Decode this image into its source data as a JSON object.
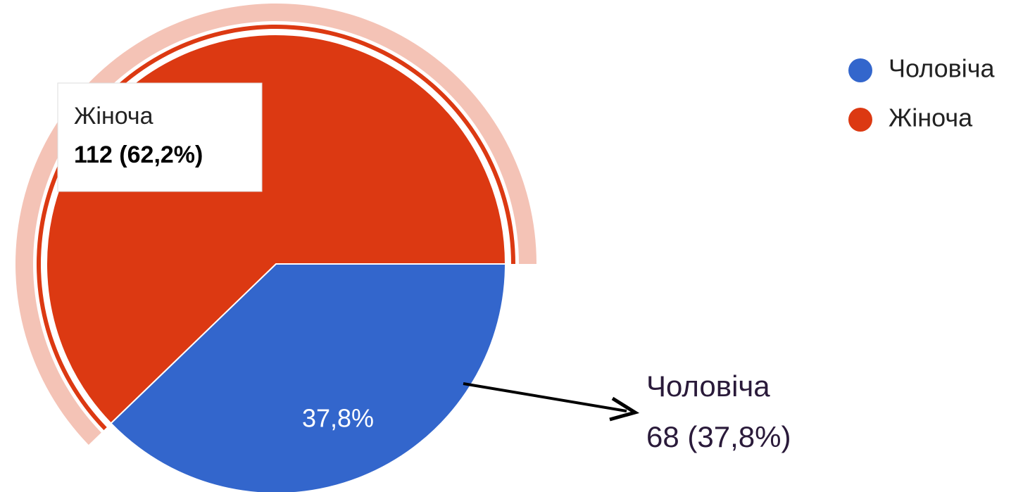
{
  "chart_data": {
    "type": "pie",
    "categories": [
      "Чоловіча",
      "Жіноча"
    ],
    "values": [
      68,
      112
    ],
    "value_labels": [
      "68 (37,8%)",
      "112 (62,2%)"
    ],
    "slice_labels": [
      "37,8%"
    ],
    "colors": [
      "#3366cc",
      "#dc3912"
    ],
    "legend": "top-right"
  }
}
